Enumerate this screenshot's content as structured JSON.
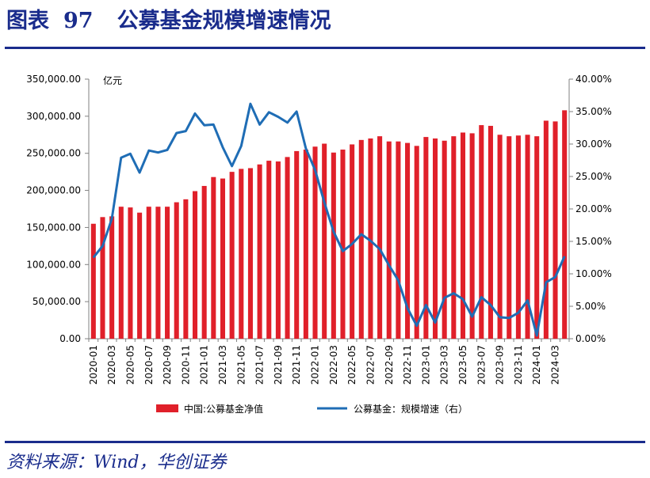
{
  "figure": {
    "label": "图表",
    "number": "97",
    "title": "公募基金规模增速情况"
  },
  "source_text": "资料来源：Wind，华创证券",
  "chart_data": {
    "type": "bar",
    "left_axis_unit": "亿元",
    "ylim_left": [
      0,
      350000
    ],
    "ylim_right": [
      0,
      0.4
    ],
    "left_ticks": [
      "0.00",
      "50,000.00",
      "100,000.00",
      "150,000.00",
      "200,000.00",
      "250,000.00",
      "300,000.00",
      "350,000.00"
    ],
    "right_ticks": [
      "0.00%",
      "5.00%",
      "10.00%",
      "15.00%",
      "20.00%",
      "25.00%",
      "30.00%",
      "35.00%",
      "40.00%"
    ],
    "x_tick_labels": [
      "2020-01",
      "2020-03",
      "2020-05",
      "2020-07",
      "2020-09",
      "2020-11",
      "2021-01",
      "2021-03",
      "2021-05",
      "2021-07",
      "2021-09",
      "2021-11",
      "2022-01",
      "2022-03",
      "2022-05",
      "2022-07",
      "2022-09",
      "2022-11",
      "2023-01",
      "2023-03",
      "2023-05",
      "2023-07",
      "2023-09",
      "2023-11",
      "2024-01",
      "2024-03"
    ],
    "categories": [
      "2020-01",
      "2020-02",
      "2020-03",
      "2020-04",
      "2020-05",
      "2020-06",
      "2020-07",
      "2020-08",
      "2020-09",
      "2020-10",
      "2020-11",
      "2020-12",
      "2021-01",
      "2021-02",
      "2021-03",
      "2021-04",
      "2021-05",
      "2021-06",
      "2021-07",
      "2021-08",
      "2021-09",
      "2021-10",
      "2021-11",
      "2021-12",
      "2022-01",
      "2022-02",
      "2022-03",
      "2022-04",
      "2022-05",
      "2022-06",
      "2022-07",
      "2022-08",
      "2022-09",
      "2022-10",
      "2022-11",
      "2022-12",
      "2023-01",
      "2023-02",
      "2023-03",
      "2023-04",
      "2023-05",
      "2023-06",
      "2023-07",
      "2023-08",
      "2023-09",
      "2023-10",
      "2023-11",
      "2023-12",
      "2024-01",
      "2024-02",
      "2024-03",
      "2024-04"
    ],
    "series": [
      {
        "name": "中国:公募基金净值",
        "type": "bar",
        "axis": "left",
        "color": "#e0202a",
        "values": [
          155000,
          164000,
          165000,
          178000,
          177000,
          170000,
          178000,
          178000,
          178000,
          184000,
          188000,
          199000,
          206000,
          218000,
          216000,
          225000,
          229000,
          230000,
          235000,
          240000,
          239000,
          245000,
          253000,
          255000,
          259000,
          263000,
          251000,
          255000,
          262000,
          268000,
          270000,
          273000,
          266000,
          266000,
          264000,
          260000,
          272000,
          270000,
          267000,
          273000,
          278000,
          277000,
          288000,
          287000,
          275000,
          273000,
          274000,
          275000,
          273000,
          294000,
          293000,
          308000
        ]
      },
      {
        "name": "公募基金：规模增速（右）",
        "type": "line",
        "axis": "right",
        "color": "#1f6db5",
        "values": [
          0.125,
          0.143,
          0.185,
          0.279,
          0.285,
          0.256,
          0.29,
          0.287,
          0.291,
          0.317,
          0.32,
          0.347,
          0.329,
          0.33,
          0.295,
          0.266,
          0.297,
          0.362,
          0.33,
          0.349,
          0.342,
          0.333,
          0.35,
          0.293,
          0.26,
          0.21,
          0.165,
          0.135,
          0.146,
          0.161,
          0.151,
          0.138,
          0.113,
          0.09,
          0.047,
          0.02,
          0.052,
          0.025,
          0.063,
          0.07,
          0.061,
          0.034,
          0.064,
          0.052,
          0.033,
          0.032,
          0.04,
          0.059,
          0.005,
          0.087,
          0.095,
          0.127
        ]
      }
    ]
  }
}
